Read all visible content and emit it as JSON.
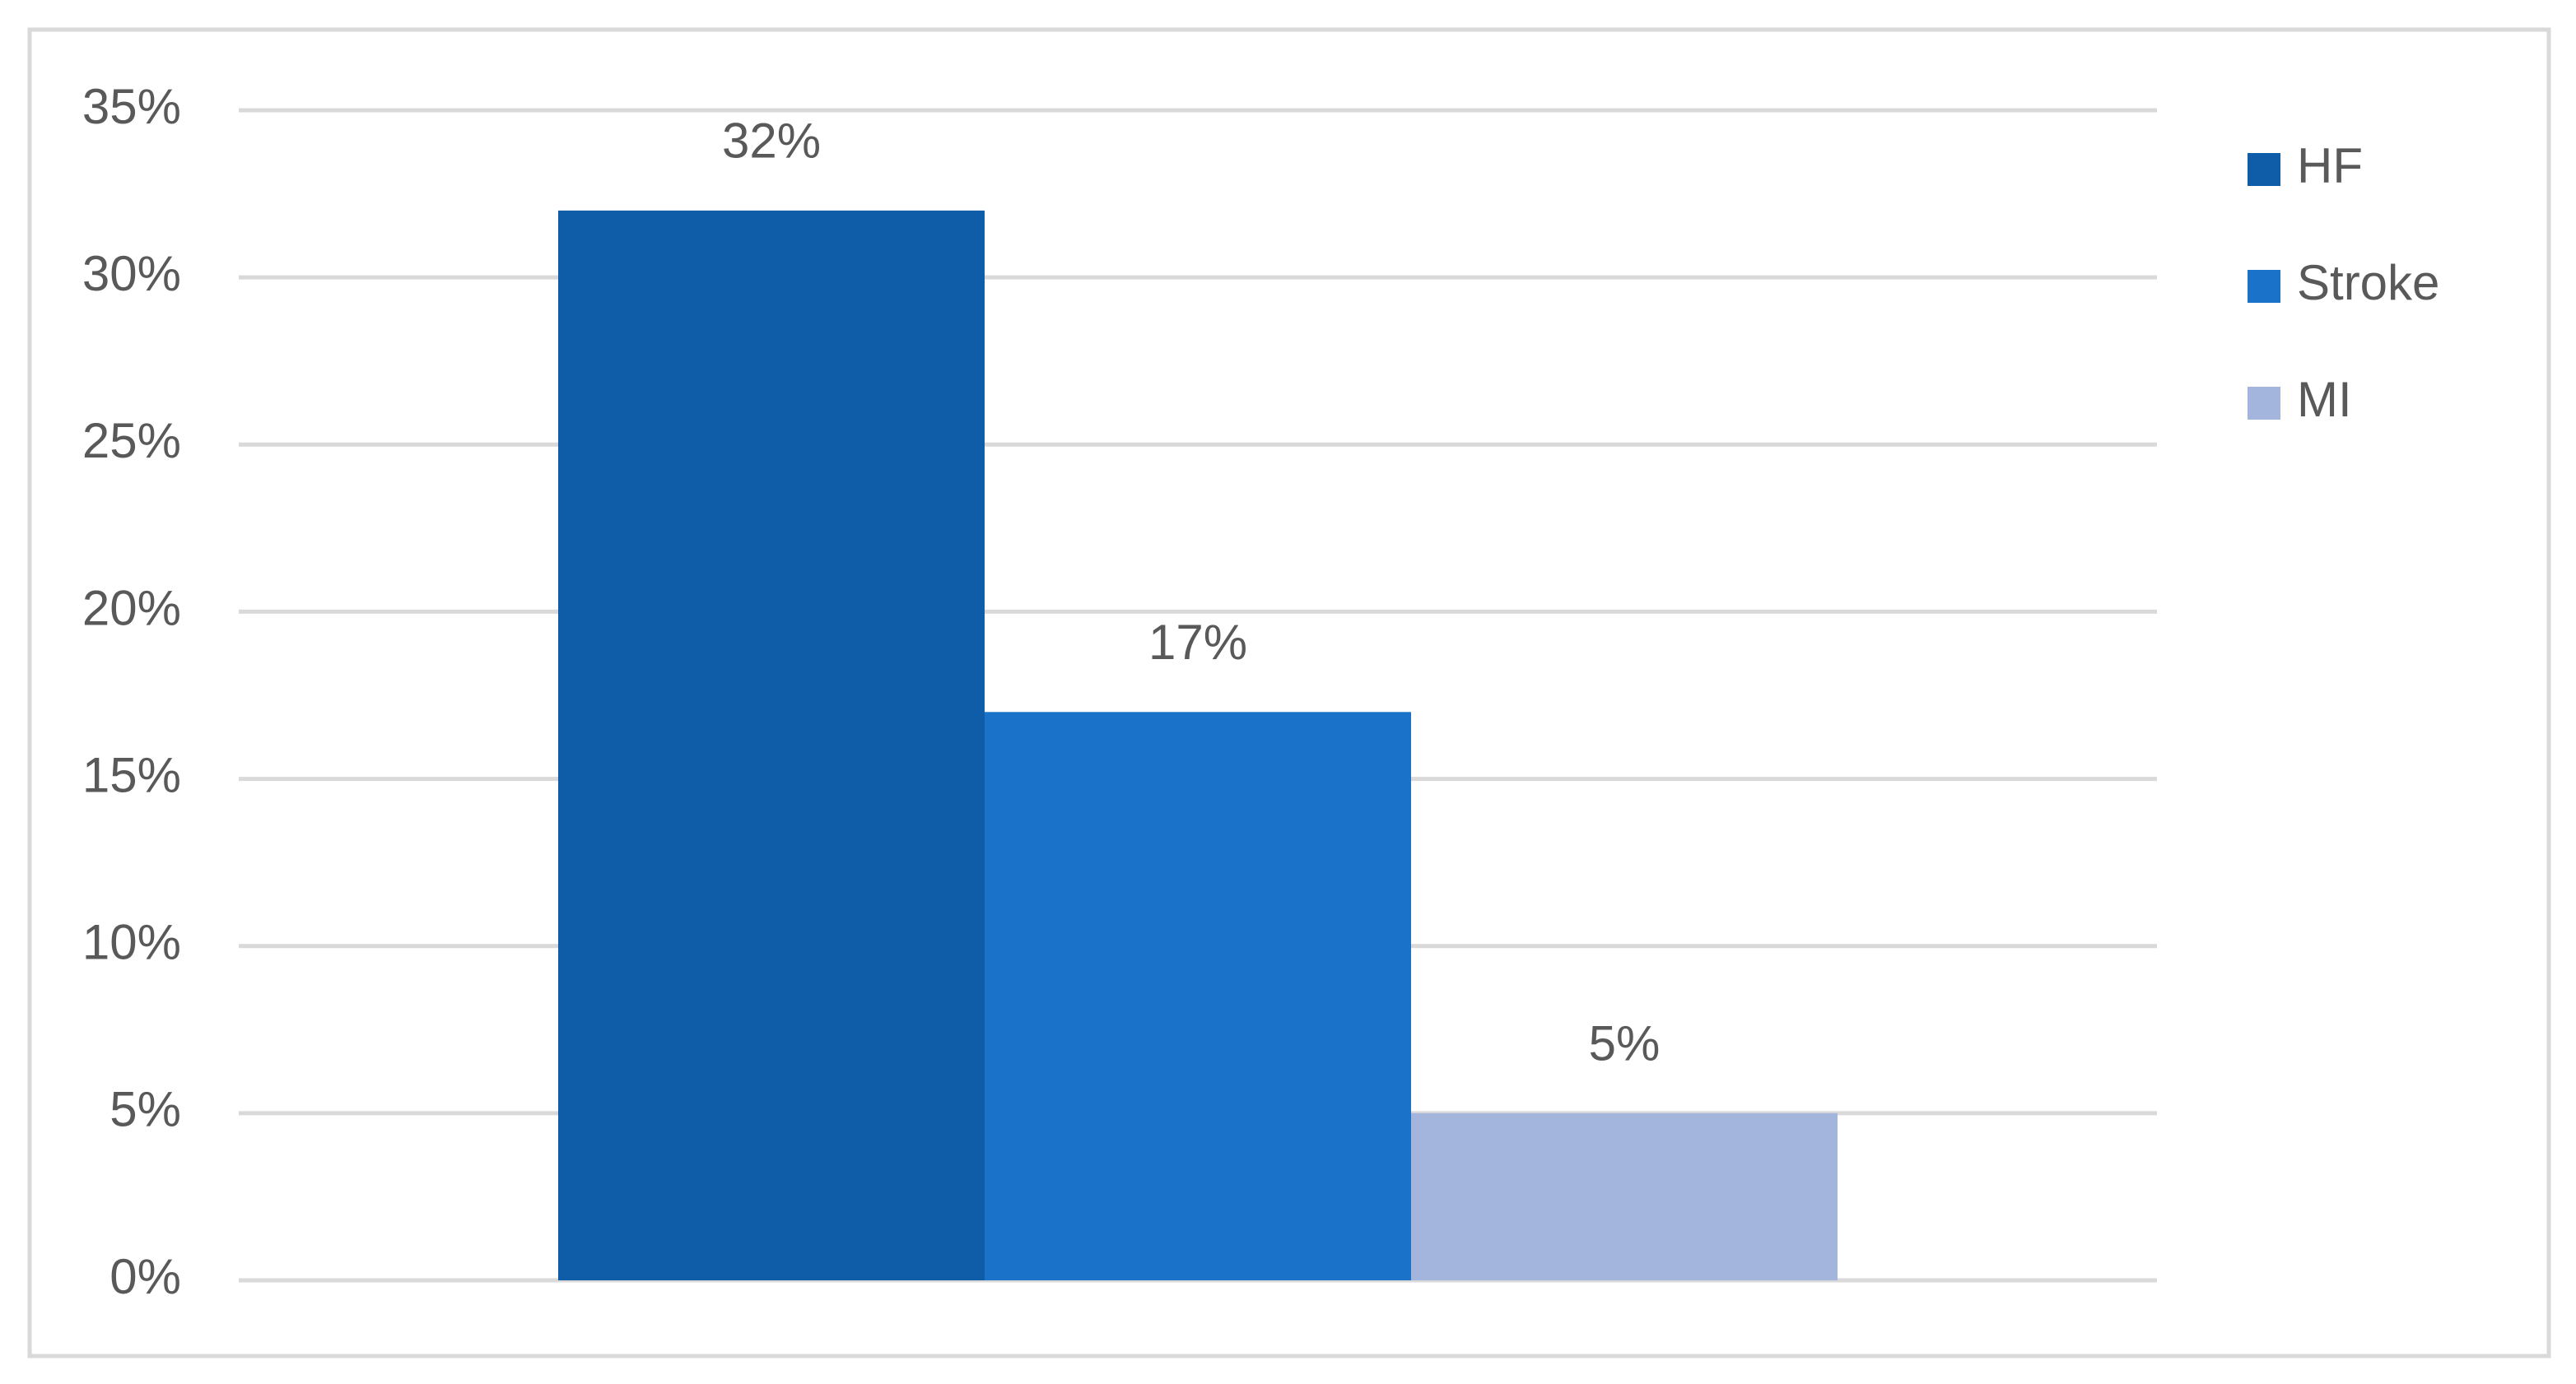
{
  "chart_data": {
    "type": "bar",
    "categories": [
      null
    ],
    "series": [
      {
        "name": "HF",
        "color": "#0f5ca8",
        "values": [
          32
        ],
        "value_labels": [
          "32%"
        ]
      },
      {
        "name": "Stroke",
        "color": "#1a73c9",
        "values": [
          17
        ],
        "value_labels": [
          "17%"
        ]
      },
      {
        "name": "MI",
        "color": "#a4b5dd",
        "values": [
          5
        ],
        "value_labels": [
          "5%"
        ]
      }
    ],
    "ylim": [
      0,
      35
    ],
    "yticks": [
      {
        "value": 0,
        "label": "0%"
      },
      {
        "value": 5,
        "label": "5%"
      },
      {
        "value": 10,
        "label": "10%"
      },
      {
        "value": 15,
        "label": "15%"
      },
      {
        "value": 20,
        "label": "20%"
      },
      {
        "value": 25,
        "label": "25%"
      },
      {
        "value": 30,
        "label": "30%"
      },
      {
        "value": 35,
        "label": "35%"
      }
    ],
    "grid": true,
    "legend": "right"
  }
}
